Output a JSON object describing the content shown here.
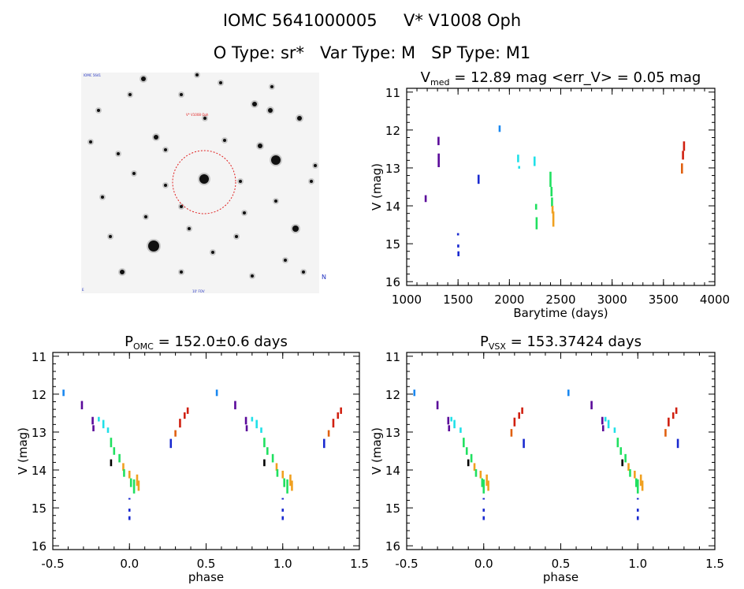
{
  "header": {
    "line1": "IOMC 5641000005     V* V1008 Oph",
    "line2": "O Type: sr*   Var Type: M   SP Type: M1"
  },
  "colors": {
    "axis": "#000000",
    "circle": "#e02020",
    "palette": [
      "#000000",
      "#5a0a9a",
      "#1a2ad0",
      "#1a88f0",
      "#20e0e8",
      "#20e060",
      "#f0a020",
      "#e06010",
      "#d02010"
    ]
  },
  "image_panel": {
    "tiny_label_top": "IOMC 5641",
    "tiny_label_target": "V* V1008 Oph",
    "tiny_label_bottom": "10' FOV",
    "tiny_label_right": "N",
    "tiny_label_left": "E"
  },
  "chart_data": [
    {
      "id": "lightcurve",
      "type": "scatter",
      "title_main": "V",
      "title_sub": "med",
      "title_rest": " = 12.89 mag <err_V> = 0.05 mag",
      "xlabel": "Barytime (days)",
      "ylabel": "V (mag)",
      "xlim": [
        1000,
        4000
      ],
      "ylim": [
        16.1,
        10.9
      ],
      "xticks": [
        "1000",
        "1500",
        "2000",
        "2500",
        "3000",
        "3500",
        "4000"
      ],
      "xtick_values": [
        1000,
        1500,
        2000,
        2500,
        3000,
        3500,
        4000
      ],
      "yticks": [
        "11",
        "12",
        "13",
        "14",
        "15",
        "16"
      ],
      "ytick_values": [
        11,
        12,
        13,
        14,
        15,
        16
      ],
      "segments": [
        {
          "x": 1185,
          "y1": 13.72,
          "y2": 13.9,
          "c": 1
        },
        {
          "x": 1310,
          "y1": 12.18,
          "y2": 12.4,
          "c": 1
        },
        {
          "x": 1312,
          "y1": 12.62,
          "y2": 12.98,
          "c": 1
        },
        {
          "x": 1500,
          "y1": 14.72,
          "y2": 14.78,
          "c": 2
        },
        {
          "x": 1502,
          "y1": 15.02,
          "y2": 15.1,
          "c": 2
        },
        {
          "x": 1504,
          "y1": 15.2,
          "y2": 15.33,
          "c": 2
        },
        {
          "x": 1700,
          "y1": 13.18,
          "y2": 13.42,
          "c": 2
        },
        {
          "x": 1905,
          "y1": 11.88,
          "y2": 12.05,
          "c": 3
        },
        {
          "x": 2085,
          "y1": 12.65,
          "y2": 12.85,
          "c": 4
        },
        {
          "x": 2095,
          "y1": 12.95,
          "y2": 13.02,
          "c": 4
        },
        {
          "x": 2245,
          "y1": 12.7,
          "y2": 12.95,
          "c": 4
        },
        {
          "x": 2260,
          "y1": 13.95,
          "y2": 14.1,
          "c": 5
        },
        {
          "x": 2265,
          "y1": 14.3,
          "y2": 14.62,
          "c": 5
        },
        {
          "x": 2400,
          "y1": 13.1,
          "y2": 13.5,
          "c": 5
        },
        {
          "x": 2410,
          "y1": 13.5,
          "y2": 13.75,
          "c": 5
        },
        {
          "x": 2415,
          "y1": 13.78,
          "y2": 14.02,
          "c": 5
        },
        {
          "x": 2420,
          "y1": 14.0,
          "y2": 14.2,
          "c": 6
        },
        {
          "x": 2428,
          "y1": 14.15,
          "y2": 14.55,
          "c": 6
        },
        {
          "x": 3680,
          "y1": 12.88,
          "y2": 13.15,
          "c": 7
        },
        {
          "x": 3690,
          "y1": 12.55,
          "y2": 12.78,
          "c": 8
        },
        {
          "x": 3700,
          "y1": 12.3,
          "y2": 12.55,
          "c": 8
        }
      ]
    },
    {
      "id": "phase_omc",
      "type": "scatter",
      "title_main": "P",
      "title_sub": "OMC",
      "title_rest": " = 152.0±0.6 days",
      "xlabel": "phase",
      "ylabel": "V (mag)",
      "xlim": [
        -0.5,
        1.5
      ],
      "ylim": [
        16.1,
        10.9
      ],
      "xticks": [
        "-0.5",
        "0.0",
        "0.5",
        "1.0",
        "1.5"
      ],
      "xtick_values": [
        -0.5,
        0.0,
        0.5,
        1.0,
        1.5
      ],
      "yticks": [
        "11",
        "12",
        "13",
        "14",
        "15",
        "16"
      ],
      "ytick_values": [
        11,
        12,
        13,
        14,
        15,
        16
      ],
      "segments": [
        {
          "x": -0.43,
          "y1": 11.88,
          "y2": 12.05,
          "c": 3
        },
        {
          "x": -0.31,
          "y1": 12.18,
          "y2": 12.4,
          "c": 1
        },
        {
          "x": -0.24,
          "y1": 12.6,
          "y2": 12.8,
          "c": 1
        },
        {
          "x": -0.235,
          "y1": 12.82,
          "y2": 12.98,
          "c": 1
        },
        {
          "x": -0.2,
          "y1": 12.6,
          "y2": 12.72,
          "c": 4
        },
        {
          "x": -0.17,
          "y1": 12.68,
          "y2": 12.9,
          "c": 4
        },
        {
          "x": -0.14,
          "y1": 12.88,
          "y2": 13.02,
          "c": 4
        },
        {
          "x": -0.12,
          "y1": 13.15,
          "y2": 13.4,
          "c": 5
        },
        {
          "x": -0.1,
          "y1": 13.4,
          "y2": 13.6,
          "c": 5
        },
        {
          "x": -0.12,
          "y1": 13.72,
          "y2": 13.9,
          "c": 0
        },
        {
          "x": -0.065,
          "y1": 13.58,
          "y2": 13.8,
          "c": 5
        },
        {
          "x": -0.04,
          "y1": 13.82,
          "y2": 14.02,
          "c": 6
        },
        {
          "x": -0.035,
          "y1": 13.98,
          "y2": 14.18,
          "c": 5
        },
        {
          "x": 0.0,
          "y1": 14.02,
          "y2": 14.22,
          "c": 6
        },
        {
          "x": 0.01,
          "y1": 14.22,
          "y2": 14.45,
          "c": 5
        },
        {
          "x": 0.03,
          "y1": 14.25,
          "y2": 14.62,
          "c": 5
        },
        {
          "x": 0.05,
          "y1": 14.12,
          "y2": 14.42,
          "c": 6
        },
        {
          "x": 0.06,
          "y1": 14.28,
          "y2": 14.55,
          "c": 6
        },
        {
          "x": 0.0,
          "y1": 14.74,
          "y2": 14.78,
          "c": 2
        },
        {
          "x": 0.0,
          "y1": 15.02,
          "y2": 15.1,
          "c": 2
        },
        {
          "x": 0.0,
          "y1": 15.22,
          "y2": 15.32,
          "c": 2
        },
        {
          "x": 0.27,
          "y1": 13.18,
          "y2": 13.42,
          "c": 2
        },
        {
          "x": 0.3,
          "y1": 12.95,
          "y2": 13.12,
          "c": 7
        },
        {
          "x": 0.33,
          "y1": 12.65,
          "y2": 12.88,
          "c": 8
        },
        {
          "x": 0.36,
          "y1": 12.48,
          "y2": 12.65,
          "c": 8
        },
        {
          "x": 0.38,
          "y1": 12.35,
          "y2": 12.52,
          "c": 8
        },
        {
          "x": 0.57,
          "y1": 11.88,
          "y2": 12.05,
          "c": 3
        },
        {
          "x": 0.69,
          "y1": 12.18,
          "y2": 12.4,
          "c": 1
        },
        {
          "x": 0.76,
          "y1": 12.6,
          "y2": 12.8,
          "c": 1
        },
        {
          "x": 0.765,
          "y1": 12.82,
          "y2": 12.98,
          "c": 1
        },
        {
          "x": 0.8,
          "y1": 12.6,
          "y2": 12.72,
          "c": 4
        },
        {
          "x": 0.83,
          "y1": 12.68,
          "y2": 12.9,
          "c": 4
        },
        {
          "x": 0.86,
          "y1": 12.88,
          "y2": 13.02,
          "c": 4
        },
        {
          "x": 0.88,
          "y1": 13.15,
          "y2": 13.4,
          "c": 5
        },
        {
          "x": 0.9,
          "y1": 13.4,
          "y2": 13.6,
          "c": 5
        },
        {
          "x": 0.88,
          "y1": 13.72,
          "y2": 13.9,
          "c": 0
        },
        {
          "x": 0.935,
          "y1": 13.58,
          "y2": 13.8,
          "c": 5
        },
        {
          "x": 0.96,
          "y1": 13.82,
          "y2": 14.02,
          "c": 6
        },
        {
          "x": 0.965,
          "y1": 13.98,
          "y2": 14.18,
          "c": 5
        },
        {
          "x": 1.0,
          "y1": 14.02,
          "y2": 14.22,
          "c": 6
        },
        {
          "x": 1.01,
          "y1": 14.22,
          "y2": 14.45,
          "c": 5
        },
        {
          "x": 1.03,
          "y1": 14.25,
          "y2": 14.62,
          "c": 5
        },
        {
          "x": 1.05,
          "y1": 14.12,
          "y2": 14.42,
          "c": 6
        },
        {
          "x": 1.06,
          "y1": 14.28,
          "y2": 14.55,
          "c": 6
        },
        {
          "x": 1.0,
          "y1": 14.74,
          "y2": 14.78,
          "c": 2
        },
        {
          "x": 1.0,
          "y1": 15.02,
          "y2": 15.1,
          "c": 2
        },
        {
          "x": 1.0,
          "y1": 15.22,
          "y2": 15.32,
          "c": 2
        },
        {
          "x": 1.27,
          "y1": 13.18,
          "y2": 13.42,
          "c": 2
        },
        {
          "x": 1.3,
          "y1": 12.95,
          "y2": 13.12,
          "c": 7
        },
        {
          "x": 1.33,
          "y1": 12.65,
          "y2": 12.88,
          "c": 8
        },
        {
          "x": 1.36,
          "y1": 12.48,
          "y2": 12.65,
          "c": 8
        },
        {
          "x": 1.38,
          "y1": 12.35,
          "y2": 12.52,
          "c": 8
        }
      ]
    },
    {
      "id": "phase_vsx",
      "type": "scatter",
      "title_main": "P",
      "title_sub": "VSX",
      "title_rest": " = 153.37424 days",
      "xlabel": "phase",
      "ylabel": "V (mag)",
      "xlim": [
        -0.5,
        1.5
      ],
      "ylim": [
        16.1,
        10.9
      ],
      "xticks": [
        "-0.5",
        "0.0",
        "0.5",
        "1.0",
        "1.5"
      ],
      "xtick_values": [
        -0.5,
        0.0,
        0.5,
        1.0,
        1.5
      ],
      "yticks": [
        "11",
        "12",
        "13",
        "14",
        "15",
        "16"
      ],
      "ytick_values": [
        11,
        12,
        13,
        14,
        15,
        16
      ],
      "segments": [
        {
          "x": -0.45,
          "y1": 11.88,
          "y2": 12.05,
          "c": 3
        },
        {
          "x": -0.3,
          "y1": 12.18,
          "y2": 12.4,
          "c": 1
        },
        {
          "x": -0.23,
          "y1": 12.6,
          "y2": 12.8,
          "c": 1
        },
        {
          "x": -0.225,
          "y1": 12.82,
          "y2": 12.98,
          "c": 1
        },
        {
          "x": -0.21,
          "y1": 12.6,
          "y2": 12.72,
          "c": 4
        },
        {
          "x": -0.19,
          "y1": 12.68,
          "y2": 12.9,
          "c": 4
        },
        {
          "x": -0.15,
          "y1": 12.88,
          "y2": 13.02,
          "c": 4
        },
        {
          "x": -0.13,
          "y1": 13.15,
          "y2": 13.4,
          "c": 5
        },
        {
          "x": -0.11,
          "y1": 13.4,
          "y2": 13.6,
          "c": 5
        },
        {
          "x": -0.1,
          "y1": 13.72,
          "y2": 13.9,
          "c": 0
        },
        {
          "x": -0.08,
          "y1": 13.58,
          "y2": 13.8,
          "c": 5
        },
        {
          "x": -0.06,
          "y1": 13.82,
          "y2": 14.02,
          "c": 6
        },
        {
          "x": -0.05,
          "y1": 13.98,
          "y2": 14.18,
          "c": 5
        },
        {
          "x": -0.02,
          "y1": 14.02,
          "y2": 14.22,
          "c": 6
        },
        {
          "x": -0.01,
          "y1": 14.22,
          "y2": 14.45,
          "c": 5
        },
        {
          "x": 0.0,
          "y1": 14.25,
          "y2": 14.62,
          "c": 5
        },
        {
          "x": 0.02,
          "y1": 14.12,
          "y2": 14.42,
          "c": 6
        },
        {
          "x": 0.03,
          "y1": 14.28,
          "y2": 14.55,
          "c": 6
        },
        {
          "x": 0.0,
          "y1": 14.74,
          "y2": 14.78,
          "c": 2
        },
        {
          "x": 0.0,
          "y1": 15.02,
          "y2": 15.1,
          "c": 2
        },
        {
          "x": 0.0,
          "y1": 15.22,
          "y2": 15.32,
          "c": 2
        },
        {
          "x": 0.18,
          "y1": 12.92,
          "y2": 13.12,
          "c": 7
        },
        {
          "x": 0.2,
          "y1": 12.62,
          "y2": 12.85,
          "c": 8
        },
        {
          "x": 0.23,
          "y1": 12.48,
          "y2": 12.65,
          "c": 8
        },
        {
          "x": 0.25,
          "y1": 12.35,
          "y2": 12.52,
          "c": 8
        },
        {
          "x": 0.26,
          "y1": 13.18,
          "y2": 13.42,
          "c": 2
        },
        {
          "x": 0.55,
          "y1": 11.88,
          "y2": 12.05,
          "c": 3
        },
        {
          "x": 0.7,
          "y1": 12.18,
          "y2": 12.4,
          "c": 1
        },
        {
          "x": 0.77,
          "y1": 12.6,
          "y2": 12.8,
          "c": 1
        },
        {
          "x": 0.775,
          "y1": 12.82,
          "y2": 12.98,
          "c": 1
        },
        {
          "x": 0.79,
          "y1": 12.6,
          "y2": 12.72,
          "c": 4
        },
        {
          "x": 0.81,
          "y1": 12.68,
          "y2": 12.9,
          "c": 4
        },
        {
          "x": 0.85,
          "y1": 12.88,
          "y2": 13.02,
          "c": 4
        },
        {
          "x": 0.87,
          "y1": 13.15,
          "y2": 13.4,
          "c": 5
        },
        {
          "x": 0.89,
          "y1": 13.4,
          "y2": 13.6,
          "c": 5
        },
        {
          "x": 0.9,
          "y1": 13.72,
          "y2": 13.9,
          "c": 0
        },
        {
          "x": 0.92,
          "y1": 13.58,
          "y2": 13.8,
          "c": 5
        },
        {
          "x": 0.94,
          "y1": 13.82,
          "y2": 14.02,
          "c": 6
        },
        {
          "x": 0.95,
          "y1": 13.98,
          "y2": 14.18,
          "c": 5
        },
        {
          "x": 0.98,
          "y1": 14.02,
          "y2": 14.22,
          "c": 6
        },
        {
          "x": 0.99,
          "y1": 14.22,
          "y2": 14.45,
          "c": 5
        },
        {
          "x": 1.0,
          "y1": 14.25,
          "y2": 14.62,
          "c": 5
        },
        {
          "x": 1.02,
          "y1": 14.12,
          "y2": 14.42,
          "c": 6
        },
        {
          "x": 1.03,
          "y1": 14.28,
          "y2": 14.55,
          "c": 6
        },
        {
          "x": 1.0,
          "y1": 14.74,
          "y2": 14.78,
          "c": 2
        },
        {
          "x": 1.0,
          "y1": 15.02,
          "y2": 15.1,
          "c": 2
        },
        {
          "x": 1.0,
          "y1": 15.22,
          "y2": 15.32,
          "c": 2
        },
        {
          "x": 1.18,
          "y1": 12.92,
          "y2": 13.12,
          "c": 7
        },
        {
          "x": 1.2,
          "y1": 12.62,
          "y2": 12.85,
          "c": 8
        },
        {
          "x": 1.23,
          "y1": 12.48,
          "y2": 12.65,
          "c": 8
        },
        {
          "x": 1.25,
          "y1": 12.35,
          "y2": 12.52,
          "c": 8
        },
        {
          "x": 1.26,
          "y1": 13.18,
          "y2": 13.42,
          "c": 2
        }
      ]
    }
  ]
}
